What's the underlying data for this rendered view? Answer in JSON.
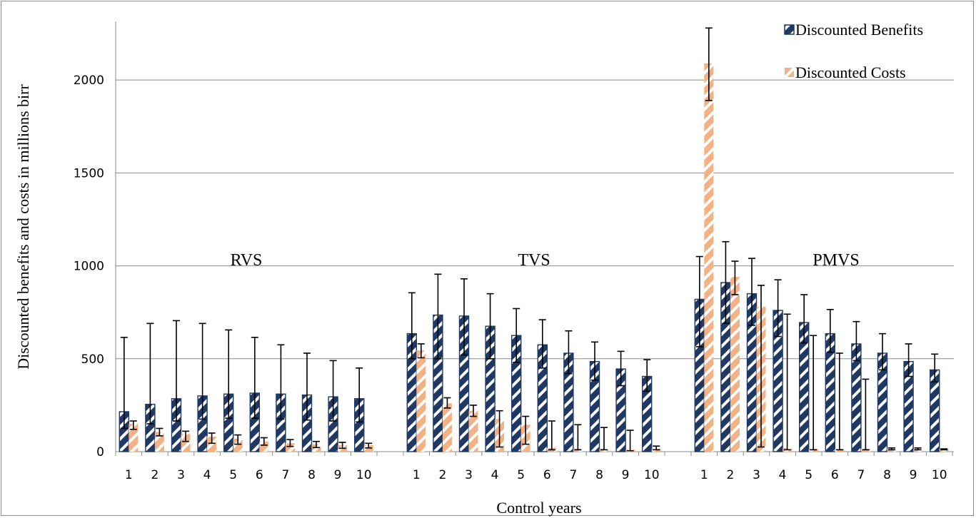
{
  "chart_data": {
    "type": "bar",
    "xlabel": "Control years",
    "ylabel": "Discounted benefits and costs in millions birr",
    "ylim": [
      0,
      2400
    ],
    "yticks": [
      0,
      500,
      1000,
      1500,
      2000
    ],
    "grid": true,
    "legend_position": "top-right",
    "legend": [
      {
        "name": "Discounted Benefits",
        "color": "#1f3864",
        "pattern": "navy-diagonal-stripes"
      },
      {
        "name": "Discounted Costs",
        "color": "#f4b183",
        "pattern": "peach-diagonal-stripes"
      }
    ],
    "groups": [
      {
        "name": "RVS",
        "categories": [
          "1",
          "2",
          "3",
          "4",
          "5",
          "6",
          "7",
          "8",
          "9",
          "10"
        ],
        "benefits": {
          "values": [
            215,
            255,
            285,
            300,
            310,
            315,
            310,
            305,
            295,
            285
          ],
          "err_low": [
            125,
            150,
            165,
            175,
            180,
            180,
            175,
            170,
            165,
            160
          ],
          "err_high": [
            615,
            690,
            705,
            690,
            655,
            615,
            575,
            530,
            490,
            450
          ]
        },
        "costs": {
          "values": [
            150,
            105,
            95,
            80,
            70,
            55,
            45,
            40,
            35,
            35
          ],
          "err_low": [
            120,
            85,
            55,
            45,
            40,
            35,
            28,
            22,
            18,
            20
          ],
          "err_high": [
            165,
            125,
            110,
            100,
            90,
            75,
            65,
            55,
            50,
            45
          ]
        }
      },
      {
        "name": "TVS",
        "categories": [
          "1",
          "2",
          "3",
          "4",
          "5",
          "6",
          "7",
          "8",
          "9",
          "10"
        ],
        "benefits": {
          "values": [
            635,
            735,
            730,
            675,
            625,
            575,
            530,
            485,
            445,
            405
          ],
          "err_low": [
            500,
            500,
            520,
            500,
            480,
            450,
            420,
            385,
            355,
            325
          ],
          "err_high": [
            855,
            955,
            930,
            850,
            770,
            710,
            650,
            590,
            540,
            495
          ]
        },
        "costs": {
          "values": [
            545,
            260,
            220,
            175,
            145,
            20,
            15,
            15,
            10,
            15
          ],
          "err_low": [
            505,
            235,
            190,
            25,
            40,
            10,
            10,
            10,
            5,
            10
          ],
          "err_high": [
            580,
            290,
            250,
            220,
            190,
            165,
            145,
            130,
            115,
            30
          ]
        }
      },
      {
        "name": "PMVS",
        "categories": [
          "1",
          "2",
          "3",
          "4",
          "5",
          "6",
          "7",
          "8",
          "9",
          "10"
        ],
        "benefits": {
          "values": [
            820,
            910,
            850,
            760,
            695,
            635,
            580,
            530,
            485,
            440
          ],
          "err_low": [
            565,
            690,
            680,
            620,
            585,
            535,
            490,
            440,
            405,
            375
          ],
          "err_high": [
            1050,
            1130,
            1040,
            925,
            845,
            765,
            700,
            635,
            580,
            525
          ]
        },
        "costs": {
          "values": [
            2090,
            940,
            780,
            20,
            15,
            15,
            15,
            15,
            15,
            15
          ],
          "err_low": [
            1890,
            845,
            25,
            10,
            10,
            10,
            10,
            10,
            10,
            10
          ],
          "err_high": [
            2280,
            1025,
            895,
            740,
            625,
            530,
            390,
            20,
            20,
            15
          ]
        }
      }
    ]
  }
}
